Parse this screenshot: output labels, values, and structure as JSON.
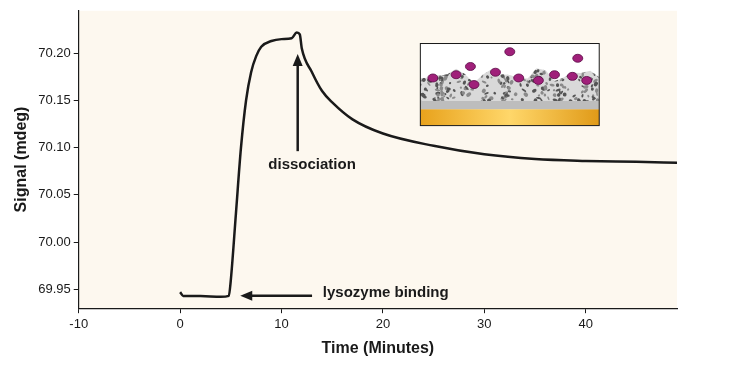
{
  "chart_data": {
    "type": "line",
    "x_label": "Time (Minutes)",
    "y_label": "Signal (mdeg)",
    "annotations": [
      "dissociation",
      "lysozyme binding"
    ],
    "x": [
      0,
      0.3,
      2,
      4,
      4.8,
      5.0,
      5.5,
      6,
      6.5,
      7,
      7.5,
      8,
      9,
      10,
      11,
      11.5,
      11.8,
      12,
      13,
      14,
      15,
      17,
      20,
      25,
      30,
      35,
      40,
      45,
      49
    ],
    "values": [
      69.947,
      69.943,
      69.943,
      69.942,
      69.943,
      69.96,
      70.03,
      70.1,
      70.15,
      70.18,
      70.197,
      70.207,
      70.213,
      70.215,
      70.216,
      70.222,
      70.22,
      70.205,
      70.18,
      70.16,
      70.148,
      70.13,
      70.115,
      70.102,
      70.093,
      70.088,
      70.086,
      70.085,
      70.084
    ],
    "color": "#1a1a1a",
    "xlim": [
      -10,
      49
    ],
    "xticks": [
      -10,
      0,
      10,
      20,
      30,
      40
    ],
    "ylim": [
      69.93,
      70.245
    ],
    "yticks": [
      {
        "value": 69.95,
        "label": "69.95"
      },
      {
        "value": 70.0,
        "label": "70.00"
      },
      {
        "value": 70.05,
        "label": "70.05"
      },
      {
        "value": 70.1,
        "label": "70.10"
      },
      {
        "value": 70.15,
        "label": "70.15"
      },
      {
        "value": 70.2,
        "label": "70.20"
      }
    ],
    "grid": false
  }
}
